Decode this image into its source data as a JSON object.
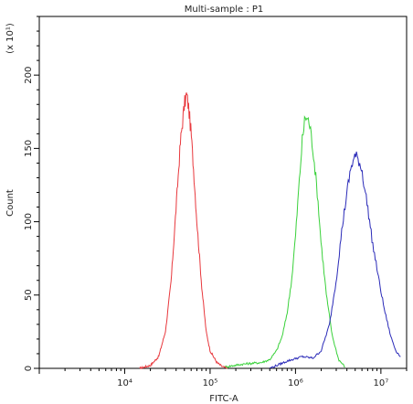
{
  "chart_data": {
    "type": "line",
    "title": "Multi-sample : P1",
    "xlabel": "FITC-A",
    "ylabel": "Count",
    "y_multiplier_label": "(x 10¹)",
    "x_scale": "log",
    "xlim": [
      1000,
      20000000
    ],
    "ylim": [
      0,
      240
    ],
    "x_ticks": [
      {
        "value": 10000,
        "label": "10⁴"
      },
      {
        "value": 100000,
        "label": "10⁵"
      },
      {
        "value": 1000000,
        "label": "10⁶"
      },
      {
        "value": 10000000,
        "label": "10⁷"
      }
    ],
    "y_ticks": [
      {
        "value": 0,
        "label": "0"
      },
      {
        "value": 50,
        "label": "50"
      },
      {
        "value": 100,
        "label": "100"
      },
      {
        "value": 150,
        "label": "150"
      },
      {
        "value": 200,
        "label": "200"
      }
    ],
    "grid": false,
    "legend": "none",
    "series": [
      {
        "color": "#e8383d",
        "x": [
          15000,
          20000,
          25000,
          30000,
          35000,
          40000,
          45000,
          50000,
          53000,
          56000,
          60000,
          65000,
          70000,
          80000,
          90000,
          100000,
          120000,
          140000,
          160000
        ],
        "y": [
          0,
          2,
          8,
          25,
          60,
          110,
          155,
          180,
          187,
          178,
          160,
          130,
          100,
          55,
          25,
          12,
          4,
          1,
          0
        ]
      },
      {
        "color": "#39d13a",
        "x": [
          150000,
          250000,
          400000,
          500000,
          600000,
          700000,
          800000,
          900000,
          1000000,
          1100000,
          1200000,
          1300000,
          1450000,
          1600000,
          1800000,
          2000000,
          2300000,
          2700000,
          3200000,
          3800000
        ],
        "y": [
          1,
          3,
          4,
          6,
          12,
          22,
          38,
          60,
          90,
          125,
          155,
          172,
          168,
          150,
          120,
          85,
          50,
          22,
          6,
          1
        ]
      },
      {
        "color": "#2a2ab8",
        "x": [
          500000,
          800000,
          1200000,
          1600000,
          2000000,
          2500000,
          3000000,
          3500000,
          4000000,
          4500000,
          5000000,
          5500000,
          6000000,
          7000000,
          8000000,
          9500000,
          11000000,
          13000000,
          15000000,
          17000000
        ],
        "y": [
          0,
          5,
          8,
          7,
          12,
          30,
          60,
          95,
          120,
          138,
          145,
          142,
          135,
          110,
          85,
          60,
          40,
          22,
          12,
          8
        ]
      }
    ]
  }
}
